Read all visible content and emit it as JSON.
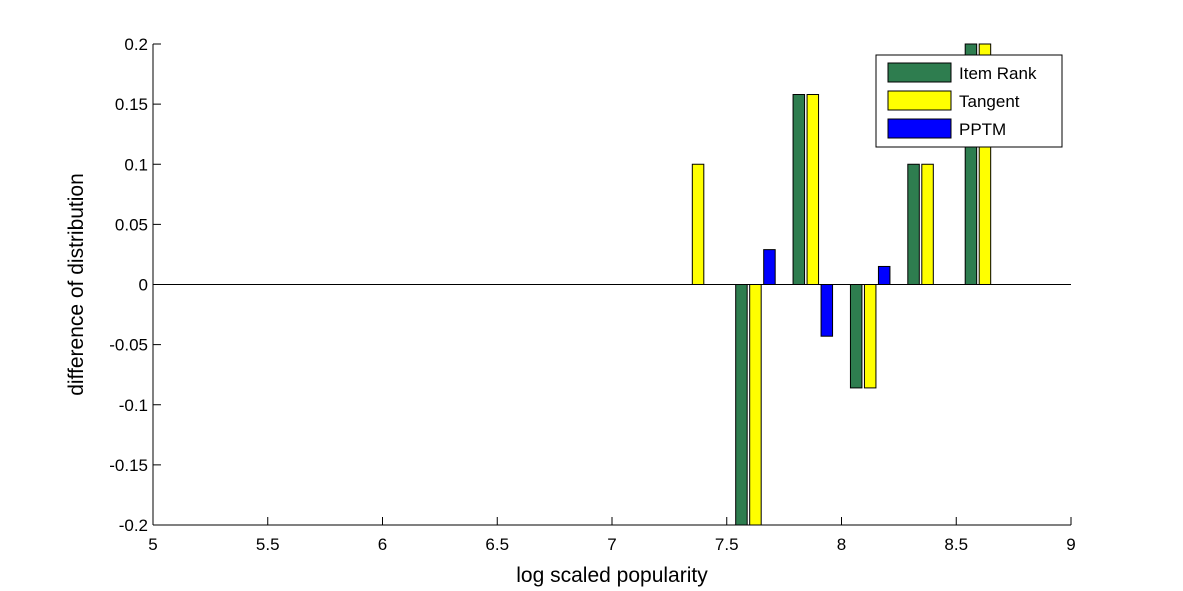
{
  "chart_data": {
    "type": "bar",
    "title": "",
    "xlabel": "log scaled popularity",
    "ylabel": "difference of distribution",
    "xlim": [
      5,
      9
    ],
    "ylim": [
      -0.2,
      0.2
    ],
    "xticks": [
      5,
      5.5,
      6,
      6.5,
      7,
      7.5,
      8,
      8.5,
      9
    ],
    "xtick_labels": [
      "5",
      "5.5",
      "6",
      "6.5",
      "7",
      "7.5",
      "8",
      "8.5",
      "9"
    ],
    "yticks": [
      0.2,
      0.15,
      0.1,
      0.05,
      0,
      -0.05,
      -0.1,
      -0.15,
      -0.2
    ],
    "ytick_labels": [
      "0.2",
      "0.15",
      "0.1",
      "0.05",
      "0",
      "-0.05",
      "-0.1",
      "-0.15",
      "-0.2"
    ],
    "grid": false,
    "legend_position": "top-right",
    "categories": [
      7.375,
      7.625,
      7.875,
      8.125,
      8.375,
      8.625
    ],
    "series": [
      {
        "name": "Item Rank",
        "color": "#2e7d4f",
        "values": [
          0,
          -0.2,
          0.158,
          -0.086,
          0.1,
          0.2
        ]
      },
      {
        "name": "Tangent",
        "color": "#ffff00",
        "values": [
          0.1,
          -0.2,
          0.158,
          -0.086,
          0.1,
          0.2
        ]
      },
      {
        "name": "PPTM",
        "color": "#0000ff",
        "values": [
          0,
          0.029,
          -0.043,
          0.015,
          0,
          0
        ]
      }
    ]
  }
}
